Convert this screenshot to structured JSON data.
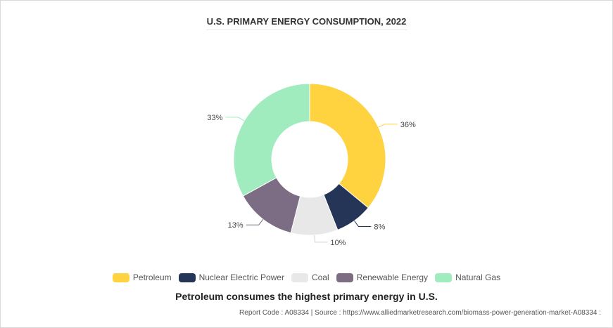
{
  "chart_data": {
    "type": "pie",
    "title": "U.S. PRIMARY ENERGY CONSUMPTION, 2022",
    "categories": [
      "Petroleum",
      "Nuclear Electric Power",
      "Coal",
      "Renewable Energy",
      "Natural Gas"
    ],
    "values": [
      36,
      8,
      10,
      13,
      33
    ],
    "unit": "%",
    "data_labels": [
      "36%",
      "8%",
      "10%",
      "13%",
      "33%"
    ],
    "colors": [
      "#ffd23f",
      "#243557",
      "#e8e8e8",
      "#7d6d84",
      "#a0ecbf"
    ],
    "donut": true,
    "legend_position": "bottom"
  },
  "caption": "Petroleum consumes the highest primary energy in U.S.",
  "footer": "Report Code : A08334  |  Source : https://www.alliedmarketresearch.com/biomass-power-generation-market-A08334 :"
}
